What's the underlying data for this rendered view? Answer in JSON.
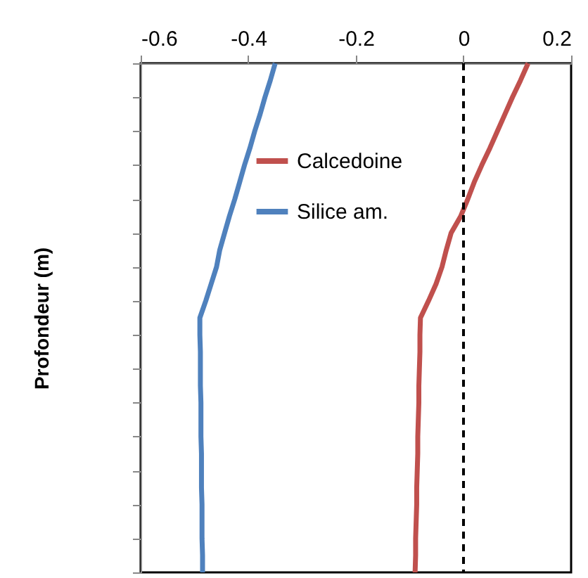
{
  "chart_data": {
    "type": "line",
    "orientation": "horizontal",
    "ylabel": "Profondeur (m)",
    "xlim": [
      -0.6,
      0.2
    ],
    "xticks": [
      -0.6,
      -0.4,
      -0.2,
      0,
      0.2
    ],
    "categories": [
      null,
      null,
      null,
      null,
      null,
      null,
      null,
      null,
      null,
      null,
      null,
      null,
      null,
      null,
      null,
      null,
      null,
      null,
      null,
      null,
      null,
      null,
      null,
      null,
      null,
      null,
      null,
      null,
      null,
      null,
      null
    ],
    "series": [
      {
        "name": "Calcedoine",
        "color": "#c0504d",
        "values": [
          0.12,
          0.106,
          0.091,
          0.077,
          0.063,
          0.049,
          0.034,
          0.02,
          0.008,
          -0.005,
          -0.023,
          -0.032,
          -0.04,
          -0.051,
          -0.065,
          -0.08,
          -0.081,
          -0.081,
          -0.082,
          -0.083,
          -0.083,
          -0.084,
          -0.085,
          -0.085,
          -0.086,
          -0.087,
          -0.087,
          -0.088,
          -0.089,
          -0.089,
          -0.09
        ]
      },
      {
        "name": "Silice am.",
        "color": "#4f81bd",
        "values": [
          -0.35,
          -0.359,
          -0.369,
          -0.378,
          -0.388,
          -0.397,
          -0.407,
          -0.416,
          -0.425,
          -0.435,
          -0.444,
          -0.453,
          -0.459,
          -0.469,
          -0.479,
          -0.49,
          -0.49,
          -0.489,
          -0.489,
          -0.489,
          -0.488,
          -0.488,
          -0.488,
          -0.487,
          -0.487,
          -0.487,
          -0.486,
          -0.486,
          -0.486,
          -0.485,
          -0.485
        ]
      }
    ],
    "ref_lines": [
      {
        "axis": "x",
        "value": 0,
        "color": "#000000",
        "line_style": "dashed"
      }
    ],
    "legend": "top",
    "grid": false,
    "marker": "none",
    "line_style": "solid"
  }
}
